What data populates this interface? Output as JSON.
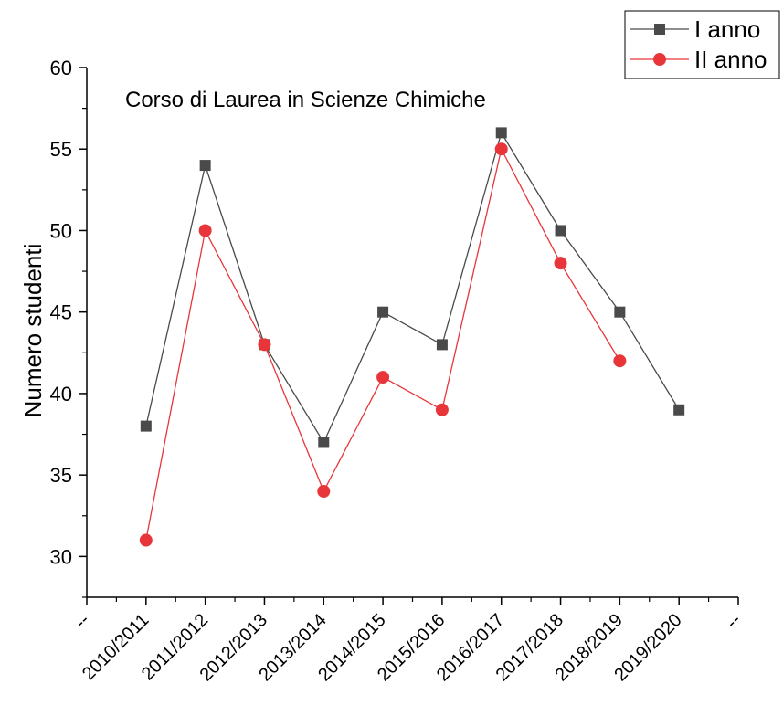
{
  "chart_data": {
    "type": "line",
    "title": "Corso di Laurea in Scienze Chimiche",
    "xlabel": "",
    "ylabel": "Numero studenti",
    "categories": [
      "--",
      "2010/2011",
      "2011/2012",
      "2012/2013",
      "2013/2014",
      "2014/2015",
      "2015/2016",
      "2016/2017",
      "2017/2018",
      "2018/2019",
      "2019/2020",
      "--"
    ],
    "ylim": [
      27.5,
      60
    ],
    "yticks": [
      30,
      35,
      40,
      45,
      50,
      55,
      60
    ],
    "grid": false,
    "legend_position": "top-right",
    "series": [
      {
        "name": "I anno",
        "marker": "square",
        "color": "#4a4a4a",
        "values": [
          null,
          38,
          54,
          43,
          37,
          45,
          43,
          56,
          50,
          45,
          39,
          null
        ]
      },
      {
        "name": "II anno",
        "marker": "circle",
        "color": "#e8353a",
        "values": [
          null,
          31,
          50,
          43,
          34,
          41,
          39,
          55,
          48,
          42,
          null,
          null
        ]
      }
    ]
  }
}
